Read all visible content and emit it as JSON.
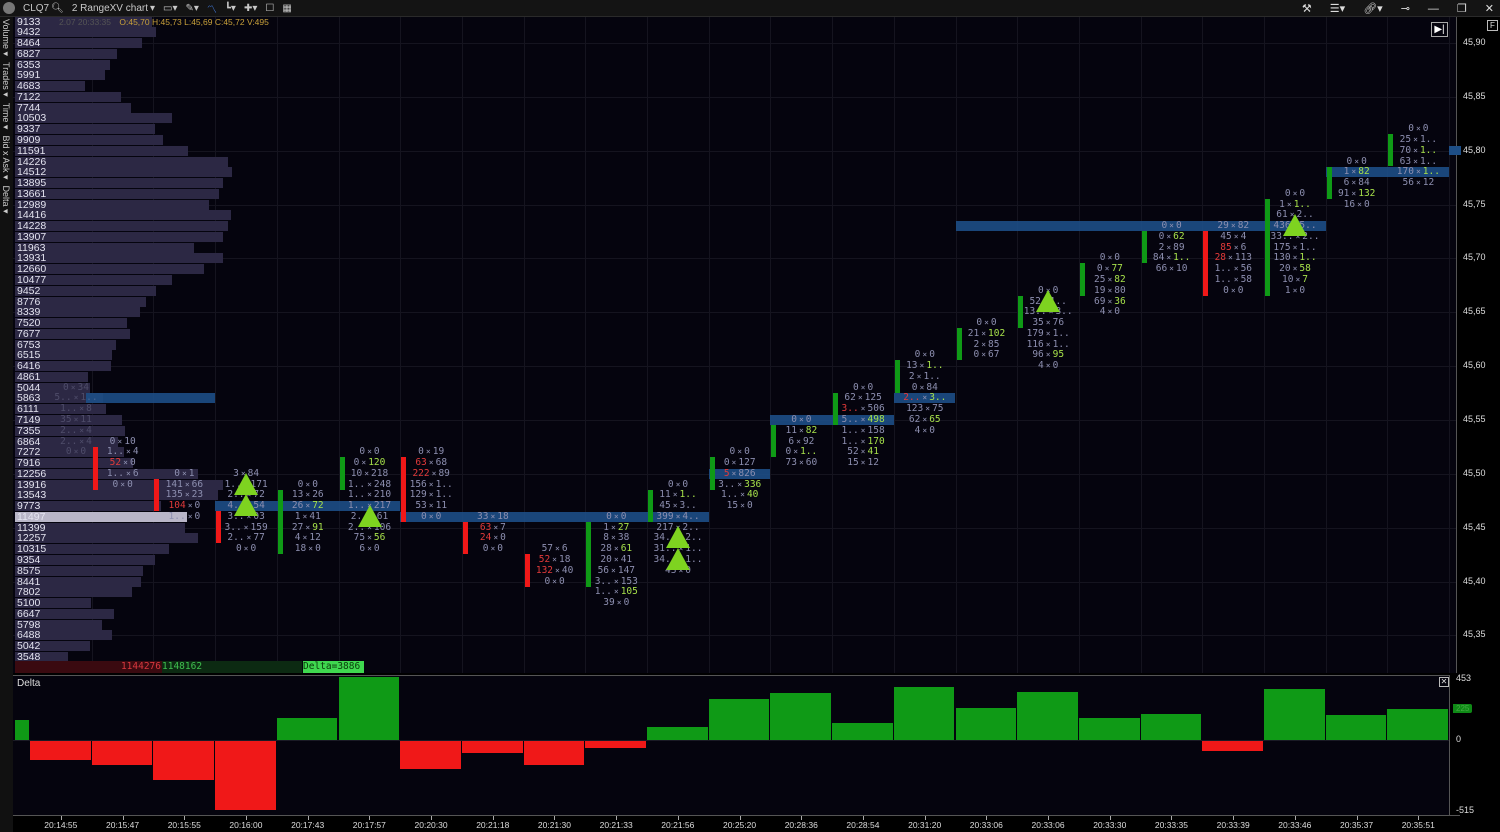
{
  "header": {
    "symbol": "CLQ7",
    "chart_type": "2 RangeXV chart",
    "info_prefix": "2.07 20:33:35",
    "info": "O:45,70  H:45,73  L:45,69  C:45,72  V:495"
  },
  "sidebar": {
    "tabs": [
      "Volume ▾",
      "Trades ▾",
      "Time ▾",
      "Bid x Ask ▾",
      "Delta ▾"
    ]
  },
  "price_axis": {
    "labels": [
      "45,90",
      "45,85",
      "45,80",
      "45,75",
      "45,70",
      "45,65",
      "45,60",
      "45,55",
      "45,50",
      "45,45",
      "45,40",
      "45,35"
    ],
    "scale_button": "F"
  },
  "colors": {
    "bull": "#0f9a16",
    "bear": "#f01818",
    "level": "#1d4e86",
    "signal": "#7ed320"
  },
  "profile": {
    "volumes": [
      9133,
      9432,
      8464,
      6827,
      6353,
      5991,
      4683,
      7122,
      7744,
      10503,
      9337,
      9909,
      11591,
      14226,
      14512,
      13895,
      13661,
      12989,
      14416,
      14228,
      13907,
      11963,
      13931,
      12660,
      10477,
      9452,
      8776,
      8339,
      7520,
      7677,
      6753,
      6515,
      6416,
      4861,
      5044,
      5863,
      6111,
      7149,
      7355,
      6864,
      7272,
      7916,
      12256,
      13916,
      13543,
      9773,
      11497,
      11399,
      12257,
      10315,
      9354,
      8575,
      8441,
      7802,
      5100,
      6647,
      5798,
      6488,
      5042,
      3548
    ],
    "poc_volume": 11497,
    "sell_total": "1144276",
    "buy_total": "1148162",
    "delta_label": "Delta=3886"
  },
  "levels": [
    {
      "price": 45.57,
      "from": 2,
      "to": 3
    },
    {
      "price": 45.47,
      "from": 4,
      "to": 6
    },
    {
      "price": 45.46,
      "from": 7,
      "to": 11
    },
    {
      "price": 45.5,
      "from": 12,
      "to": 12
    },
    {
      "price": 45.55,
      "from": 13,
      "to": 14
    },
    {
      "price": 45.57,
      "from": 15,
      "to": 15
    },
    {
      "price": 45.73,
      "from": 16,
      "to": 21
    },
    {
      "price": 45.78,
      "from": 22,
      "to": 23
    }
  ],
  "bars": [
    {
      "time": "",
      "delta": 146
    },
    {
      "time": "20:14:55",
      "delta": -146,
      "top": 45.58,
      "dim": true,
      "cells": [
        [
          "0",
          "34"
        ],
        [
          "5..",
          "1.."
        ],
        [
          "1..",
          "8"
        ],
        [
          "35",
          "11"
        ],
        [
          "2..",
          "4"
        ],
        [
          "2..",
          "4"
        ],
        [
          "0",
          "0"
        ]
      ]
    },
    {
      "time": "20:15:47",
      "delta": -180,
      "open": 45.53,
      "close": 45.49,
      "top": 45.53,
      "cells": [
        [
          "0",
          "10"
        ],
        [
          "1..",
          "4"
        ],
        [
          "52",
          "0",
          "r"
        ],
        [
          "1..",
          "6"
        ],
        [
          "0",
          "0"
        ]
      ]
    },
    {
      "time": "20:15:55",
      "delta": -290,
      "open": 45.5,
      "close": 45.47,
      "top": 45.5,
      "cells": [
        [
          "0",
          "1"
        ],
        [
          "141",
          "66"
        ],
        [
          "135",
          "23"
        ],
        [
          "104",
          "0",
          "r"
        ],
        [
          "1..",
          "0"
        ]
      ]
    },
    {
      "time": "20:16:00",
      "delta": -510,
      "open": 45.47,
      "close": 45.44,
      "top": 45.5,
      "signals": [
        45.49,
        45.47
      ],
      "cells": [
        [
          "3",
          "84"
        ],
        [
          "1..",
          "171"
        ],
        [
          "2..",
          "72"
        ],
        [
          "4..",
          "54"
        ],
        [
          "3..",
          "03"
        ],
        [
          "3..",
          "159"
        ],
        [
          "2..",
          "77"
        ],
        [
          "0",
          "0"
        ]
      ]
    },
    {
      "time": "20:17:43",
      "delta": 160,
      "open": 45.43,
      "close": 45.49,
      "top": 45.49,
      "cells": [
        [
          "0",
          "0"
        ],
        [
          "13",
          "26"
        ],
        [
          "26",
          "72",
          "g"
        ],
        [
          "1",
          "41"
        ],
        [
          "27",
          "91",
          "g"
        ],
        [
          "4",
          "12"
        ],
        [
          "18",
          "0"
        ]
      ]
    },
    {
      "time": "20:17:57",
      "delta": 453,
      "open": 45.49,
      "close": 45.52,
      "top": 45.52,
      "signals": [
        45.46
      ],
      "cells": [
        [
          "0",
          "0"
        ],
        [
          "0",
          "120",
          "g"
        ],
        [
          "10",
          "218"
        ],
        [
          "1..",
          "248"
        ],
        [
          "1..",
          "210"
        ],
        [
          "1..",
          "217"
        ],
        [
          "2..",
          "61"
        ],
        [
          "2..",
          "106"
        ],
        [
          "75",
          "56",
          "g"
        ],
        [
          "6",
          "0"
        ]
      ]
    },
    {
      "time": "20:20:30",
      "delta": -210,
      "open": 45.52,
      "close": 45.46,
      "top": 45.52,
      "cells": [
        [
          "0",
          "19"
        ],
        [
          "63",
          "68",
          "r"
        ],
        [
          "222",
          "89",
          "r"
        ],
        [
          "156",
          "1.."
        ],
        [
          "129",
          "1.."
        ],
        [
          "53",
          "11"
        ],
        [
          "0",
          "0"
        ]
      ]
    },
    {
      "time": "20:21:18",
      "delta": -95,
      "open": 45.46,
      "close": 45.43,
      "top": 45.46,
      "cells": [
        [
          "33",
          "18"
        ],
        [
          "63",
          "7",
          "r"
        ],
        [
          "24",
          "0",
          "r"
        ],
        [
          "0",
          "0"
        ]
      ]
    },
    {
      "time": "20:21:30",
      "delta": -180,
      "open": 45.43,
      "close": 45.4,
      "top": 45.43,
      "cells": [
        [
          "57",
          "6"
        ],
        [
          "52",
          "18",
          "r"
        ],
        [
          "132",
          "40",
          "r"
        ],
        [
          "0",
          "0"
        ]
      ]
    },
    {
      "time": "20:21:33",
      "delta": -58,
      "open": 45.4,
      "close": 45.46,
      "top": 45.46,
      "cells": [
        [
          "0",
          "0"
        ],
        [
          "1",
          "27",
          "g"
        ],
        [
          "8",
          "38"
        ],
        [
          "28",
          "61",
          "g"
        ],
        [
          "20",
          "41"
        ],
        [
          "56",
          "147"
        ],
        [
          "3..",
          "153"
        ],
        [
          "1..",
          "105",
          "g"
        ],
        [
          "39",
          "0"
        ]
      ]
    },
    {
      "time": "20:21:56",
      "delta": 95,
      "open": 45.46,
      "close": 45.49,
      "top": 45.49,
      "signals": [
        45.44,
        45.42
      ],
      "cells": [
        [
          "0",
          "0"
        ],
        [
          "11",
          "1..",
          "g"
        ],
        [
          "45",
          "3.."
        ],
        [
          "399",
          "4.."
        ],
        [
          "217",
          "2.."
        ],
        [
          "34..",
          "2.."
        ],
        [
          "31..",
          "1.."
        ],
        [
          "34..",
          "1.."
        ],
        [
          "43",
          "0"
        ]
      ]
    },
    {
      "time": "20:25:20",
      "delta": 300,
      "open": 45.49,
      "close": 45.52,
      "top": 45.52,
      "cells": [
        [
          "0",
          "0"
        ],
        [
          "0",
          "127"
        ],
        [
          "5",
          "826",
          "r"
        ],
        [
          "3..",
          "336",
          "g"
        ],
        [
          "1..",
          "40",
          "g"
        ],
        [
          "15",
          "0"
        ]
      ]
    },
    {
      "time": "20:28:36",
      "delta": 343,
      "open": 45.52,
      "close": 45.55,
      "top": 45.55,
      "cells": [
        [
          "0",
          "0"
        ],
        [
          "11",
          "82",
          "g"
        ],
        [
          "6",
          "92"
        ],
        [
          "0",
          "1..",
          "g"
        ],
        [
          "73",
          "60"
        ]
      ]
    },
    {
      "time": "20:28:54",
      "delta": 124,
      "open": 45.55,
      "close": 45.58,
      "top": 45.58,
      "cells": [
        [
          "0",
          "0"
        ],
        [
          "62",
          "125"
        ],
        [
          "3..",
          "506",
          "r"
        ],
        [
          "5..",
          "498",
          "g"
        ],
        [
          "1..",
          "158"
        ],
        [
          "1..",
          "170",
          "g"
        ],
        [
          "52",
          "41",
          "g"
        ],
        [
          "15",
          "12"
        ]
      ]
    },
    {
      "time": "20:31:20",
      "delta": 387,
      "open": 45.58,
      "close": 45.61,
      "top": 45.61,
      "cells": [
        [
          "0",
          "0"
        ],
        [
          "13",
          "1..",
          "g"
        ],
        [
          "2",
          "1.."
        ],
        [
          "0",
          "84"
        ],
        [
          "2..",
          "3..",
          "rg"
        ],
        [
          "123",
          "75"
        ],
        [
          "62",
          "65",
          "g"
        ],
        [
          "4",
          "0"
        ]
      ]
    },
    {
      "time": "20:33:06",
      "delta": 234,
      "open": 45.61,
      "close": 45.64,
      "top": 45.64,
      "cells": [
        [
          "0",
          "0"
        ],
        [
          "21",
          "102",
          "g"
        ],
        [
          "2",
          "85"
        ],
        [
          "0",
          "67"
        ]
      ]
    },
    {
      "time": "20:33:06",
      "delta": 350,
      "open": 45.64,
      "close": 45.67,
      "top": 45.67,
      "signals": [
        45.66
      ],
      "cells": [
        [
          "0",
          "0"
        ],
        [
          "52",
          "1.."
        ],
        [
          "13..",
          "3.."
        ],
        [
          "35",
          "76"
        ],
        [
          "179",
          "1.."
        ],
        [
          "116",
          "1.."
        ],
        [
          "96",
          "95",
          "g"
        ],
        [
          "4",
          "0"
        ]
      ]
    },
    {
      "time": "20:33:30",
      "delta": 160,
      "open": 45.67,
      "close": 45.7,
      "top": 45.7,
      "cells": [
        [
          "0",
          "0"
        ],
        [
          "0",
          "77",
          "g"
        ],
        [
          "25",
          "82",
          "g"
        ],
        [
          "19",
          "80"
        ],
        [
          "69",
          "36",
          "g"
        ],
        [
          "4",
          "0"
        ]
      ]
    },
    {
      "time": "20:33:35",
      "delta": 190,
      "open": 45.7,
      "close": 45.73,
      "top": 45.73,
      "cells": [
        [
          "0",
          "0"
        ],
        [
          "0",
          "62",
          "g"
        ],
        [
          "2",
          "89"
        ],
        [
          "84",
          "1..",
          "g"
        ],
        [
          "66",
          "10"
        ]
      ]
    },
    {
      "time": "20:33:39",
      "delta": -80,
      "open": 45.73,
      "close": 45.67,
      "top": 45.73,
      "cells": [
        [
          "29",
          "82"
        ],
        [
          "45",
          "4"
        ],
        [
          "85",
          "6",
          "r"
        ],
        [
          "28",
          "113",
          "r"
        ],
        [
          "1..",
          "56"
        ],
        [
          "1..",
          "58"
        ],
        [
          "0",
          "0"
        ]
      ]
    },
    {
      "time": "20:33:46",
      "delta": 372,
      "open": 45.67,
      "close": 45.76,
      "top": 45.76,
      "signals": [
        45.73
      ],
      "cells": [
        [
          "0",
          "0"
        ],
        [
          "1",
          "1..",
          "g"
        ],
        [
          "61",
          "2.."
        ],
        [
          "436",
          "5.."
        ],
        [
          "33..",
          "2.."
        ],
        [
          "175",
          "1.."
        ],
        [
          "130",
          "1..",
          "g"
        ],
        [
          "20",
          "58",
          "g"
        ],
        [
          "10",
          "7",
          "g"
        ],
        [
          "1",
          "0"
        ]
      ]
    },
    {
      "time": "20:35:37",
      "delta": 182,
      "open": 45.76,
      "close": 45.79,
      "top": 45.79,
      "cells": [
        [
          "0",
          "0"
        ],
        [
          "1",
          "82",
          "g"
        ],
        [
          "6",
          "84"
        ],
        [
          "91",
          "132",
          "g"
        ],
        [
          "16",
          "0"
        ]
      ]
    },
    {
      "time": "20:35:51",
      "delta": 225,
      "open": 45.79,
      "close": 45.82,
      "top": 45.82,
      "cells": [
        [
          "0",
          "0"
        ],
        [
          "25",
          "1.."
        ],
        [
          "70",
          "1..",
          "g"
        ],
        [
          "63",
          "1.."
        ],
        [
          "170",
          "1..",
          "g"
        ],
        [
          "56",
          "12"
        ]
      ]
    }
  ],
  "delta_panel": {
    "title": "Delta",
    "axis_max": "453",
    "axis_zero": "0",
    "axis_min": "-515",
    "last_value": "225"
  }
}
